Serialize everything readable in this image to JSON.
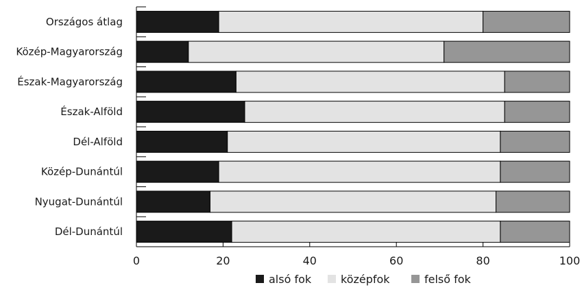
{
  "chart_data": {
    "type": "bar",
    "orientation": "horizontal",
    "stacked": true,
    "categories": [
      "Országos átlag",
      "Közép-Magyarország",
      "Észak-Magyarország",
      "Észak-Alföld",
      "Dél-Alföld",
      "Közép-Dunántúl",
      "Nyugat-Dunántúl",
      "Dél-Dunántúl"
    ],
    "series": [
      {
        "name": "alsó fok",
        "color": "#1a1a1a",
        "values": [
          19,
          12,
          23,
          25,
          21,
          19,
          17,
          22
        ]
      },
      {
        "name": "középfok",
        "color": "#e3e3e3",
        "values": [
          61,
          59,
          62,
          60,
          63,
          65,
          66,
          62
        ]
      },
      {
        "name": "felső fok",
        "color": "#969696",
        "values": [
          20,
          29,
          15,
          15,
          16,
          16,
          17,
          16
        ]
      }
    ],
    "xlim": [
      0,
      100
    ],
    "xticks": [
      0,
      20,
      40,
      60,
      80,
      100
    ],
    "title": "",
    "xlabel": "",
    "ylabel": "",
    "grid": false,
    "legend_position": "bottom"
  }
}
